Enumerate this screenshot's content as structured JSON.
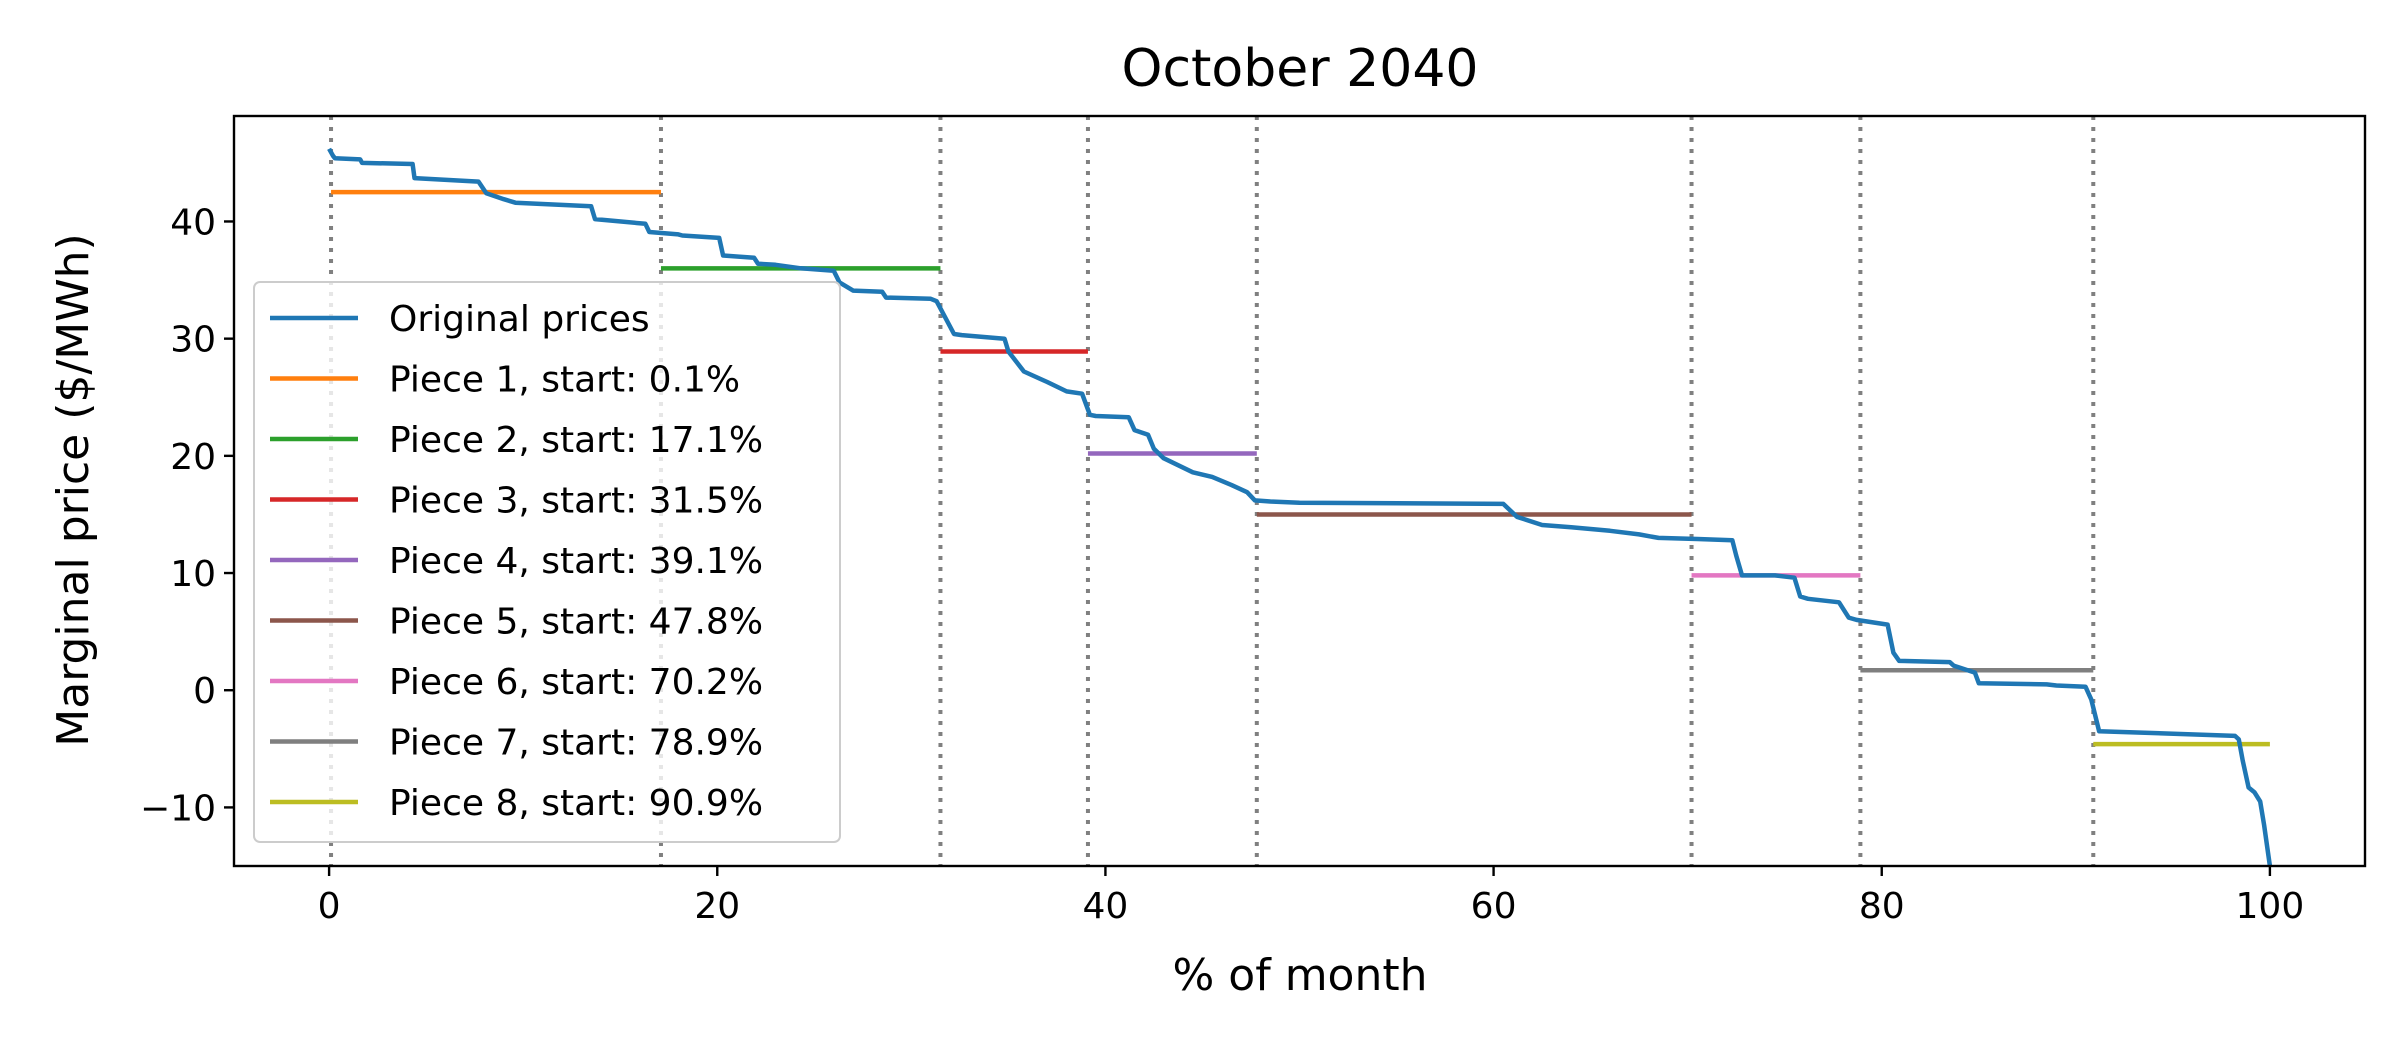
{
  "chart_data": {
    "type": "line",
    "title": "October 2040",
    "xlabel": "% of month",
    "ylabel": "Marginal price ($/MWh)",
    "xlim": [
      -4.9,
      104.9
    ],
    "ylim": [
      -15,
      49
    ],
    "xticks": [
      0,
      20,
      40,
      60,
      80,
      100
    ],
    "xtick_labels": [
      "0",
      "20",
      "40",
      "60",
      "80",
      "100"
    ],
    "yticks": [
      -10,
      0,
      10,
      20,
      30,
      40
    ],
    "ytick_labels": [
      "−10",
      "0",
      "10",
      "20",
      "30",
      "40"
    ],
    "grid": false,
    "legend_position": "lower-left",
    "breakpoints": [
      0.1,
      17.1,
      31.5,
      39.1,
      47.8,
      70.2,
      78.9,
      90.9
    ],
    "breakpoint_color": "#808080",
    "series": [
      {
        "name": "Original prices",
        "color": "#1f77b4",
        "x": [
          0,
          0.2,
          0.3,
          1.6,
          1.7,
          4.3,
          4.4,
          7.7,
          8.1,
          9.0,
          9.6,
          13.5,
          13.7,
          16.3,
          16.5,
          18.0,
          18.2,
          20.1,
          20.3,
          21.9,
          22.1,
          23.0,
          24.3,
          26.0,
          26.3,
          27.0,
          28.5,
          28.7,
          31.0,
          31.3,
          32.2,
          32.6,
          34.8,
          35.0,
          35.8,
          37.0,
          38.0,
          38.8,
          39.2,
          39.5,
          41.2,
          41.5,
          42.2,
          42.5,
          43.0,
          44.5,
          45.5,
          46.5,
          47.3,
          47.7,
          48.5,
          50.0,
          60.5,
          61.2,
          62.5,
          64.0,
          66.0,
          67.5,
          68.5,
          70.5,
          72.3,
          72.5,
          72.8,
          74.5,
          75.5,
          75.8,
          76.2,
          77.8,
          78.3,
          78.7,
          80.3,
          80.6,
          80.9,
          83.5,
          83.7,
          84.8,
          85.0,
          88.5,
          89.0,
          90.5,
          90.8,
          91.2,
          98.2,
          98.4,
          98.6,
          98.9,
          99.2,
          99.5,
          99.7,
          100.0
        ],
        "y": [
          46.2,
          45.6,
          45.4,
          45.3,
          45.0,
          44.9,
          43.7,
          43.4,
          42.4,
          41.9,
          41.6,
          41.3,
          40.2,
          39.8,
          39.1,
          38.9,
          38.8,
          38.6,
          37.1,
          36.9,
          36.4,
          36.3,
          36.0,
          35.8,
          34.8,
          34.1,
          34.0,
          33.5,
          33.4,
          33.2,
          30.4,
          30.3,
          30.0,
          28.9,
          27.2,
          26.3,
          25.5,
          25.3,
          23.5,
          23.4,
          23.3,
          22.2,
          21.8,
          20.6,
          19.8,
          18.6,
          18.2,
          17.5,
          16.9,
          16.2,
          16.1,
          16.0,
          15.9,
          14.8,
          14.1,
          13.9,
          13.6,
          13.3,
          13.0,
          12.9,
          12.8,
          11.5,
          9.8,
          9.8,
          9.6,
          8.0,
          7.8,
          7.5,
          6.2,
          6.0,
          5.6,
          3.2,
          2.5,
          2.4,
          2.1,
          1.5,
          0.6,
          0.5,
          0.4,
          0.3,
          -0.8,
          -3.5,
          -3.9,
          -4.2,
          -6.0,
          -8.3,
          -8.7,
          -9.5,
          -11.5,
          -15.0
        ]
      }
    ],
    "pieces": [
      {
        "name": "Piece 1, start: 0.1%",
        "color": "#ff7f0e",
        "x_start": 0.1,
        "x_end": 17.1,
        "value": 42.5
      },
      {
        "name": "Piece 2, start: 17.1%",
        "color": "#2ca02c",
        "x_start": 17.1,
        "x_end": 31.5,
        "value": 36.0
      },
      {
        "name": "Piece 3, start: 31.5%",
        "color": "#d62728",
        "x_start": 31.5,
        "x_end": 39.1,
        "value": 28.9
      },
      {
        "name": "Piece 4, start: 39.1%",
        "color": "#9467bd",
        "x_start": 39.1,
        "x_end": 47.8,
        "value": 20.2
      },
      {
        "name": "Piece 5, start: 47.8%",
        "color": "#8c564b",
        "x_start": 47.8,
        "x_end": 70.2,
        "value": 15.0
      },
      {
        "name": "Piece 6, start: 70.2%",
        "color": "#e377c2",
        "x_start": 70.2,
        "x_end": 78.9,
        "value": 9.8
      },
      {
        "name": "Piece 7, start: 78.9%",
        "color": "#7f7f7f",
        "x_start": 78.9,
        "x_end": 90.9,
        "value": 1.7
      },
      {
        "name": "Piece 8, start: 90.9%",
        "color": "#bcbd22",
        "x_start": 90.9,
        "x_end": 100.0,
        "value": -4.6
      }
    ]
  }
}
